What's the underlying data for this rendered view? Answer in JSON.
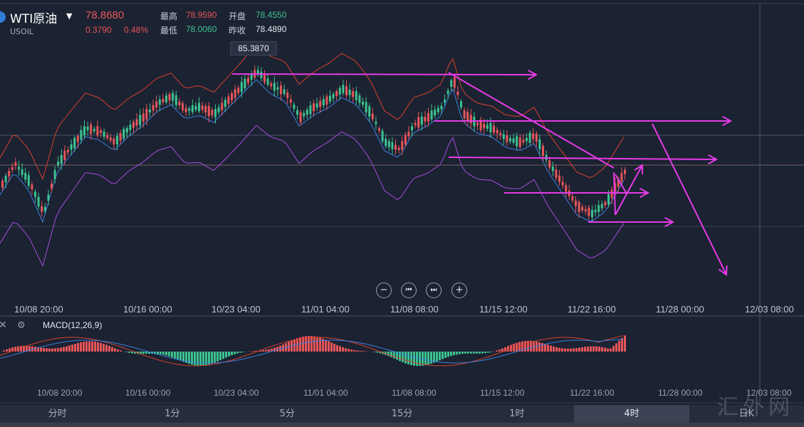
{
  "header": {
    "symbol_name": "WTI原油",
    "symbol_code": "USOIL",
    "price": "78.8680",
    "change": "0.3790",
    "change_pct": "0.48%",
    "high_label": "最高",
    "high_value": "78.9590",
    "open_label": "开盘",
    "open_value": "78.4550",
    "low_label": "最低",
    "low_value": "78.0060",
    "prev_close_label": "昨收",
    "prev_close_value": "78.4890"
  },
  "main_chart": {
    "peak_label": "85.3870",
    "x_labels": [
      "10/08 20:00",
      "10/16 00:00",
      "10/23 04:00",
      "11/01 04:00",
      "11/08 08:00",
      "11/15 12:00",
      "11/22 16:00",
      "11/28 00:00",
      "12/03 08:00"
    ]
  },
  "controls": {
    "zoom_out": "−",
    "prev": "⏮",
    "next": "⏭",
    "zoom_in": "+"
  },
  "macd": {
    "title": "MACD(12,26,9)",
    "x_labels": [
      "10/08 20:00",
      "10/16 00:00",
      "10/23 04:00",
      "11/01 04:00",
      "11/08 08:00",
      "11/15 12:00",
      "11/22 16:00",
      "11/28 00:00",
      "12/03 08:00"
    ]
  },
  "tabs": [
    "分时",
    "1分",
    "5分",
    "15分",
    "1时",
    "4时",
    "日K"
  ],
  "active_tab": "4时",
  "watermark": "汇外网",
  "colors": {
    "up": "#e8565a",
    "down": "#3cc391",
    "annotation": "#e63be8",
    "boll_upper": "#d8412e",
    "boll_mid": "#3f7fe0",
    "boll_lower": "#a64ce0"
  }
}
